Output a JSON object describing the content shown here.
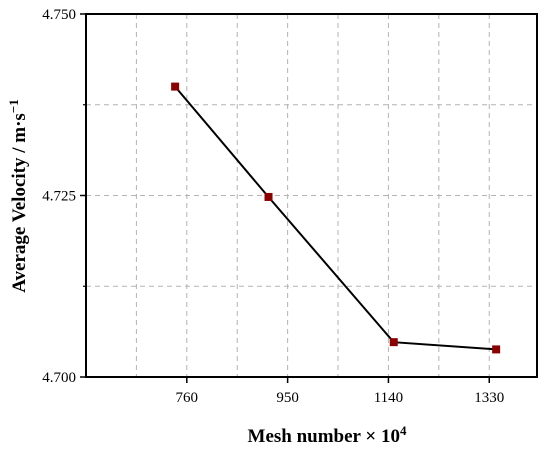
{
  "chart_data": {
    "type": "line",
    "title": "",
    "xlabel": {
      "prefix": "Mesh number × 10",
      "sup": "4"
    },
    "ylabel": {
      "prefix": "Average Velocity / m·s",
      "sup": "−1"
    },
    "x": [
      738,
      914,
      1150,
      1343
    ],
    "series": [
      {
        "values": [
          4.74,
          4.7248,
          4.7048,
          4.7038
        ]
      }
    ],
    "xlim": [
      570,
      1420
    ],
    "ylim": [
      4.7,
      4.75
    ],
    "xticks": [
      760,
      950,
      1140,
      1330
    ],
    "xtick_labels": [
      "760",
      "950",
      "1140",
      "1330"
    ],
    "yticks": [
      4.7,
      4.725,
      4.75
    ],
    "ytick_labels": [
      "4.700",
      "4.725",
      "4.750"
    ],
    "yminor_ticks": [
      4.7125,
      4.7375
    ],
    "xgrid": [
      665,
      760,
      855,
      950,
      1045,
      1140,
      1235,
      1330
    ],
    "ygrid": [
      4.7125,
      4.725,
      4.7375
    ],
    "grid": true,
    "line_color": "#000000",
    "marker_color": "#8b0000",
    "marker": "square"
  }
}
